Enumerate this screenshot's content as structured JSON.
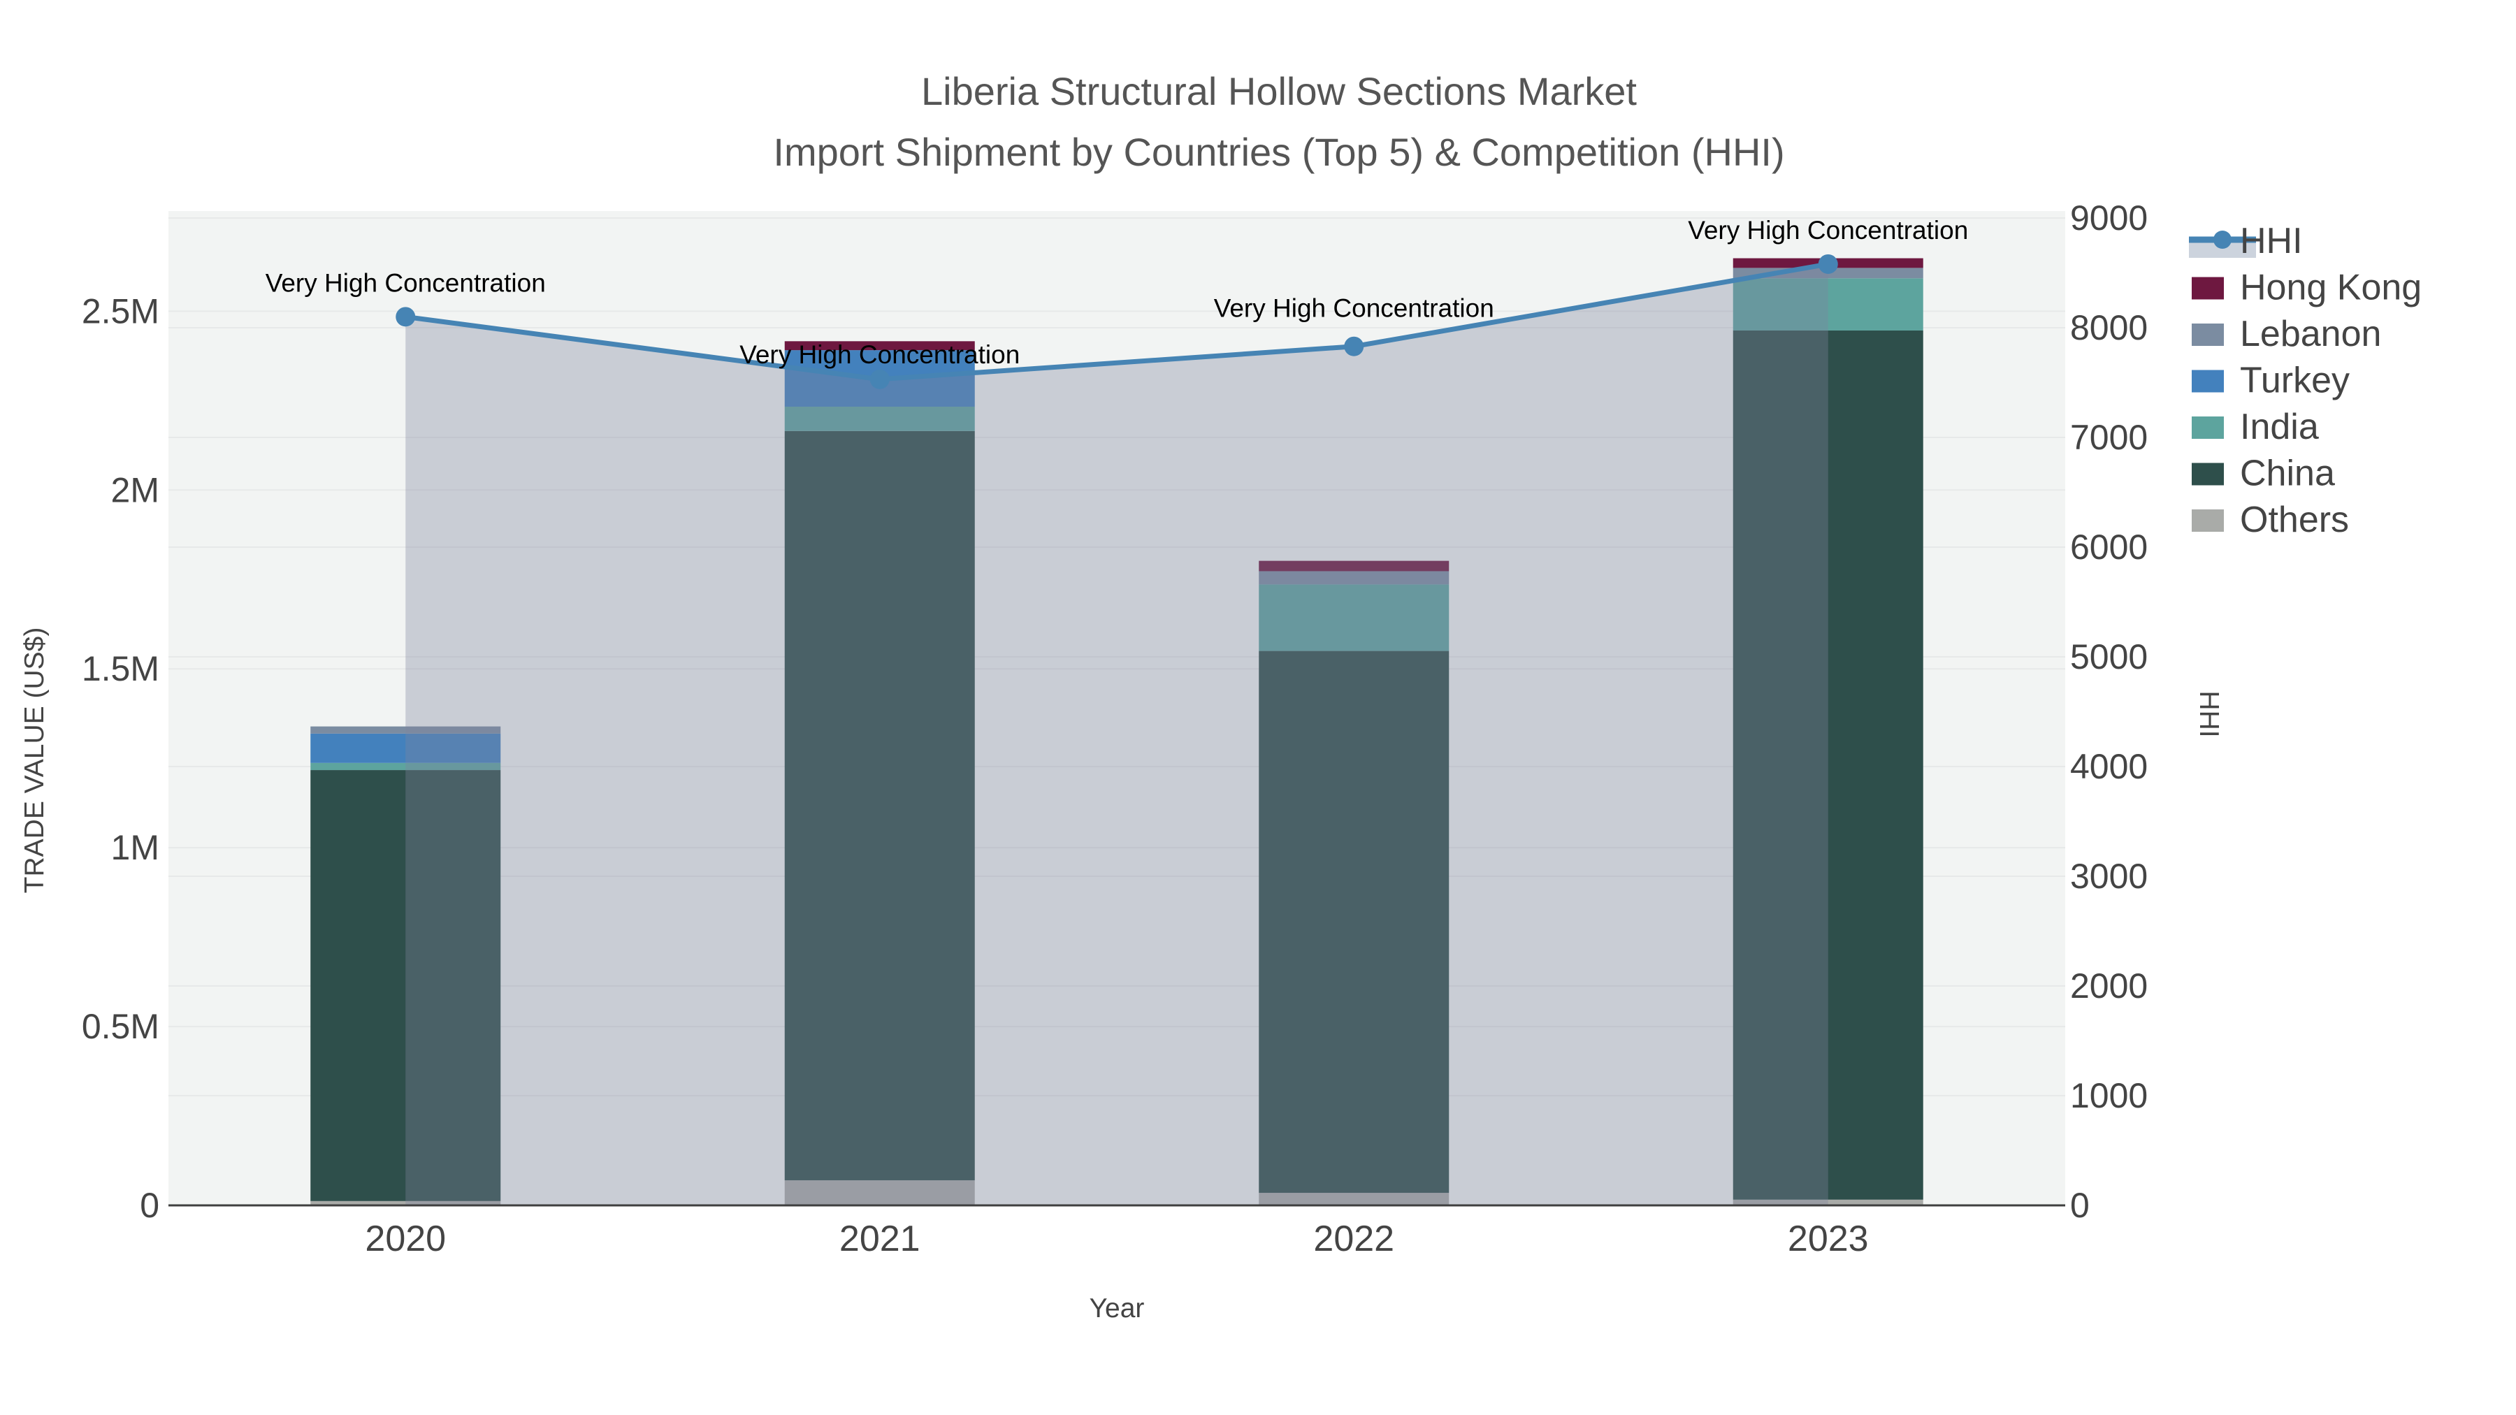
{
  "chart_data": {
    "type": "combo-stacked-bar-line",
    "title_line1": "Liberia Structural Hollow Sections Market",
    "title_line2": "Import Shipment by Countries (Top 5) & Competition (HHI)",
    "x": {
      "label": "Year",
      "categories": [
        "2020",
        "2021",
        "2022",
        "2023"
      ]
    },
    "y_left": {
      "label": "TRADE VALUE (US$)",
      "tick_values": [
        0,
        500000,
        1000000,
        1500000,
        2000000,
        2500000
      ],
      "tick_labels": [
        "0",
        "0.5M",
        "1M",
        "1.5M",
        "2M",
        "2.5M"
      ],
      "max": 2780000
    },
    "y_right": {
      "label": "HHI",
      "tick_values": [
        0,
        1000,
        2000,
        3000,
        4000,
        5000,
        6000,
        7000,
        8000,
        9000
      ],
      "tick_labels": [
        "0",
        "1000",
        "2000",
        "3000",
        "4000",
        "5000",
        "6000",
        "7000",
        "8000",
        "9000"
      ],
      "max": 9064
    },
    "stack_order": [
      "Others",
      "China",
      "India",
      "Turkey",
      "Lebanon",
      "Hong Kong"
    ],
    "series": {
      "Others": {
        "color": "#a9aba8",
        "values": [
          12000,
          70000,
          35000,
          16000
        ]
      },
      "China": {
        "color": "#2e4f4b",
        "values": [
          1205000,
          2095000,
          1515000,
          2430000
        ]
      },
      "India": {
        "color": "#5da49e",
        "values": [
          20000,
          68000,
          186000,
          146000
        ]
      },
      "Turkey": {
        "color": "#4381bd",
        "values": [
          82000,
          158000,
          0,
          0
        ]
      },
      "Lebanon": {
        "color": "#7b8ca1",
        "values": [
          20000,
          0,
          37000,
          29000
        ]
      },
      "Hong Kong": {
        "color": "#6e1840",
        "values": [
          0,
          25000,
          29000,
          27000
        ]
      }
    },
    "hhi": {
      "name": "HHI",
      "values": [
        8100,
        7530,
        7830,
        8580
      ],
      "line_color": "#4684b4",
      "fill_color": "rgba(125,133,157,0.35)"
    },
    "annotations": {
      "text": "Very High Concentration",
      "dy": [
        -48,
        -35,
        -54,
        -48
      ]
    },
    "legend_order": [
      "HHI",
      "Hong Kong",
      "Lebanon",
      "Turkey",
      "India",
      "China",
      "Others"
    ],
    "colors": {
      "plot_bg": "#f2f4f3",
      "grid": "#e7e9e9",
      "axis_line": "#3f3f3f"
    }
  }
}
